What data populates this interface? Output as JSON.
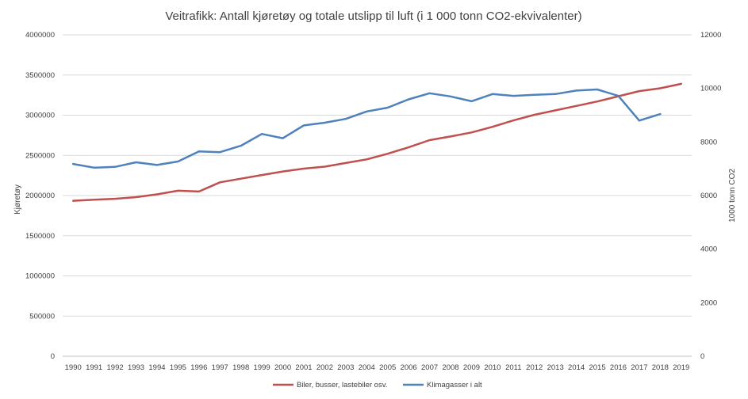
{
  "chart_data": {
    "type": "line",
    "title": "Veitrafikk: Antall kjøretøy og totale utslipp til luft (i 1 000 tonn CO2-ekvivalenter)",
    "xlabel": "",
    "ylabel": "Kjøretøy",
    "y2label": "1000 tonn CO2",
    "categories": [
      "1990",
      "1991",
      "1992",
      "1993",
      "1994",
      "1995",
      "1996",
      "1997",
      "1998",
      "1999",
      "2000",
      "2001",
      "2002",
      "2003",
      "2004",
      "2005",
      "2006",
      "2007",
      "2008",
      "2009",
      "2010",
      "2011",
      "2012",
      "2013",
      "2014",
      "2015",
      "2016",
      "2017",
      "2018",
      "2019"
    ],
    "ylim": [
      0,
      4000000
    ],
    "y_ticks": [
      "0",
      "500000",
      "1000000",
      "1500000",
      "2000000",
      "2500000",
      "3000000",
      "3500000",
      "4000000"
    ],
    "y2lim": [
      0,
      12000
    ],
    "y2_ticks": [
      "0",
      "2000",
      "4000",
      "6000",
      "8000",
      "10000",
      "12000"
    ],
    "grid": true,
    "legend_position": "bottom",
    "series": [
      {
        "name": "Biler, busser, lastebiler osv.",
        "axis": "left",
        "color": "#c0504d",
        "values": [
          1935000,
          1948000,
          1960000,
          1980000,
          2015000,
          2060000,
          2050000,
          2165000,
          2210000,
          2255000,
          2300000,
          2335000,
          2360000,
          2405000,
          2450000,
          2520000,
          2600000,
          2690000,
          2735000,
          2785000,
          2855000,
          2935000,
          3005000,
          3060000,
          3115000,
          3170000,
          3235000,
          3300000,
          3335000,
          3390000
        ]
      },
      {
        "name": "Klimagasser i alt",
        "axis": "right",
        "color": "#4f81bd",
        "values": [
          7180,
          7040,
          7070,
          7240,
          7140,
          7270,
          7650,
          7620,
          7860,
          8300,
          8140,
          8620,
          8720,
          8860,
          9140,
          9280,
          9590,
          9820,
          9700,
          9520,
          9790,
          9720,
          9760,
          9790,
          9920,
          9960,
          9720,
          8800,
          9040,
          null
        ]
      }
    ]
  }
}
